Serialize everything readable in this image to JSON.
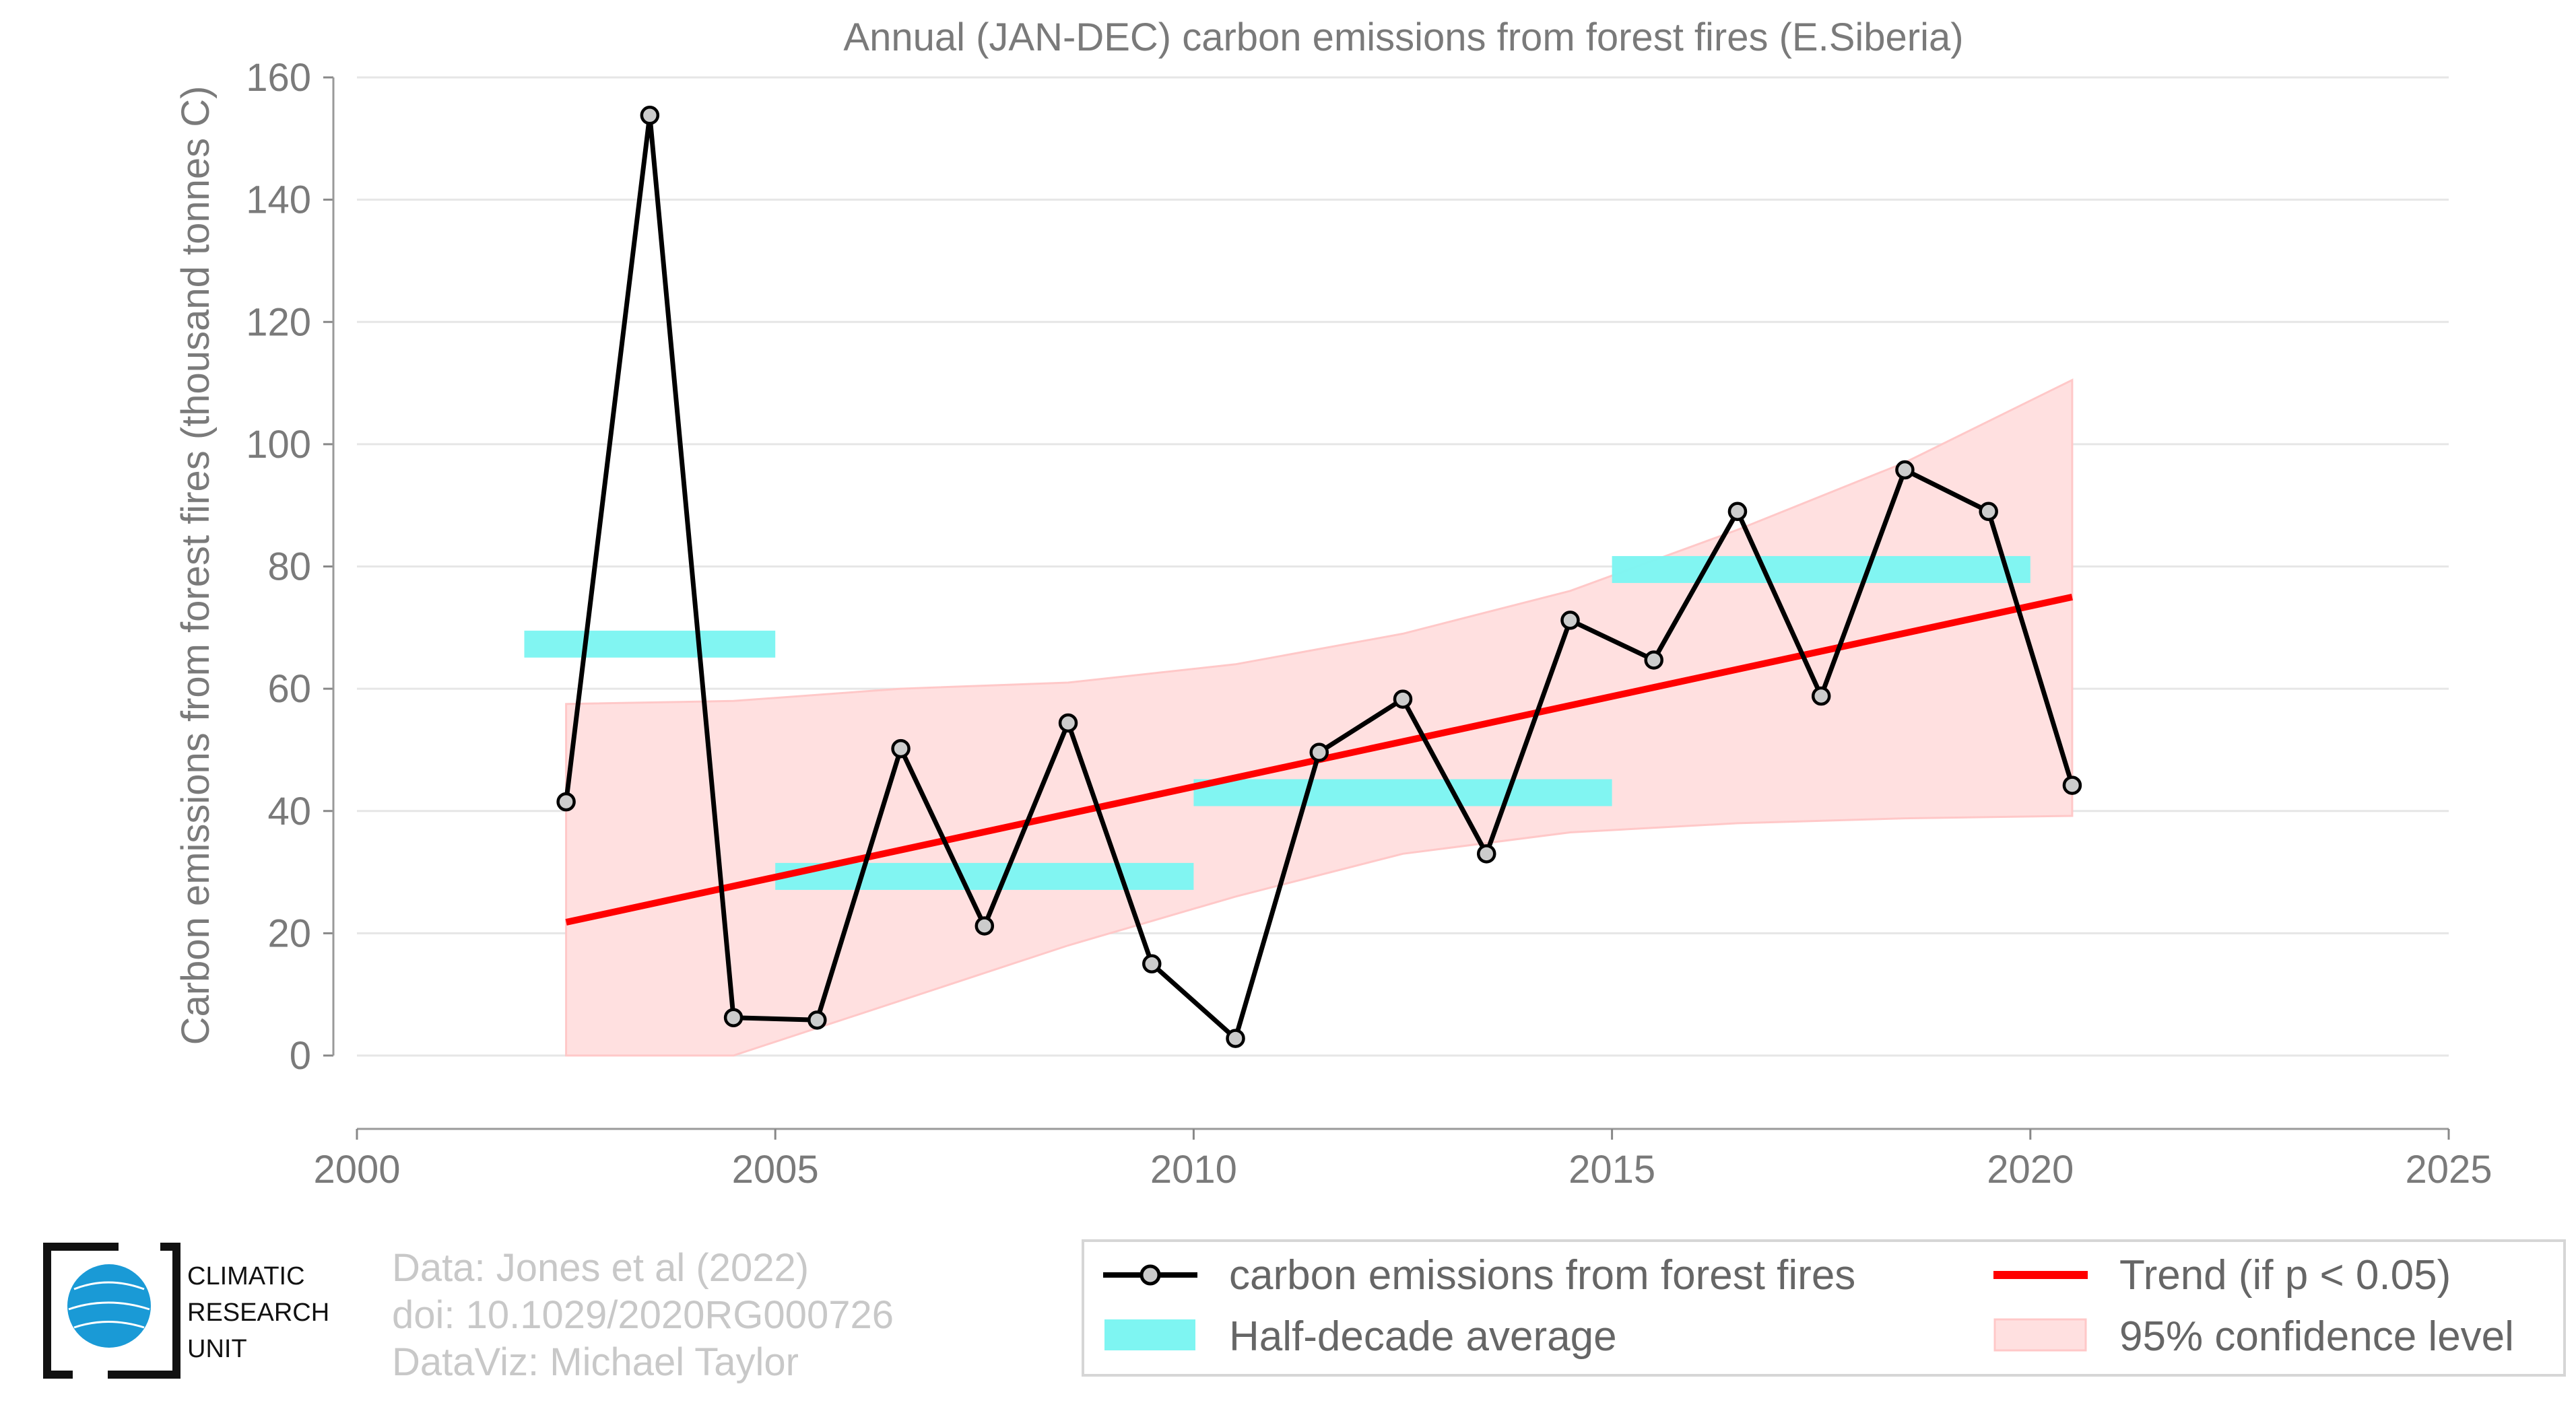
{
  "chart_data": {
    "type": "line",
    "title": "Annual (JAN-DEC) carbon emissions from forest fires (E.Siberia)",
    "xlabel": "",
    "ylabel": "Carbon emissions from forest fires (thousand tonnes C)",
    "xlim": [
      2000,
      2025
    ],
    "ylim": [
      -12,
      160
    ],
    "xticks": [
      2000,
      2005,
      2010,
      2015,
      2020,
      2025
    ],
    "yticks": [
      0,
      20,
      40,
      60,
      80,
      100,
      120,
      140,
      160
    ],
    "grid": "horizontal",
    "x": [
      2002.5,
      2003.5,
      2004.5,
      2005.5,
      2006.5,
      2007.5,
      2008.5,
      2009.5,
      2010.5,
      2011.5,
      2012.5,
      2013.5,
      2014.5,
      2015.5,
      2016.5,
      2017.5,
      2018.5,
      2019.5,
      2020.5
    ],
    "series": [
      {
        "name": "carbon emissions from forest fires",
        "color": "#000000",
        "values": [
          41.5,
          153.8,
          6.2,
          5.8,
          50.2,
          21.2,
          54.4,
          15.0,
          2.8,
          49.6,
          58.3,
          33.0,
          71.2,
          64.7,
          89.0,
          58.8,
          95.8,
          89.0,
          44.2
        ]
      }
    ],
    "half_decade_average": {
      "name": "Half-decade average",
      "color": "#7ef5f2",
      "segments": [
        {
          "x_start": 2002,
          "x_end": 2005,
          "value": 67.3
        },
        {
          "x_start": 2005,
          "x_end": 2010,
          "value": 29.3
        },
        {
          "x_start": 2010,
          "x_end": 2015,
          "value": 43.0
        },
        {
          "x_start": 2015,
          "x_end": 2020,
          "value": 79.5
        }
      ]
    },
    "trend": {
      "name": "Trend (if p < 0.05)",
      "color": "#ff0000",
      "x": [
        2002.5,
        2020.5
      ],
      "values": [
        21.8,
        75.0
      ]
    },
    "confidence": {
      "name": "95% confidence level",
      "color": "#ffe0e0",
      "x": [
        2002.5,
        2004.5,
        2006.5,
        2008.5,
        2010.5,
        2012.5,
        2014.5,
        2016.5,
        2018.5,
        2020.5
      ],
      "upper": [
        57.5,
        58.0,
        60.0,
        61.0,
        64.0,
        69.0,
        76.0,
        86.0,
        97.0,
        110.5
      ],
      "lower": [
        0.0,
        0.0,
        9.0,
        18.0,
        26.0,
        33.0,
        36.5,
        38.0,
        38.8,
        39.2
      ]
    },
    "legend_position": "bottom"
  },
  "credits": {
    "line1": "Data: Jones et al (2022)",
    "line2": "doi: 10.1029/2020RG000726",
    "line3": "DataViz: Michael Taylor"
  },
  "logo": {
    "line1": "CLIMATIC",
    "line2": "RESEARCH",
    "line3": "UNIT"
  }
}
